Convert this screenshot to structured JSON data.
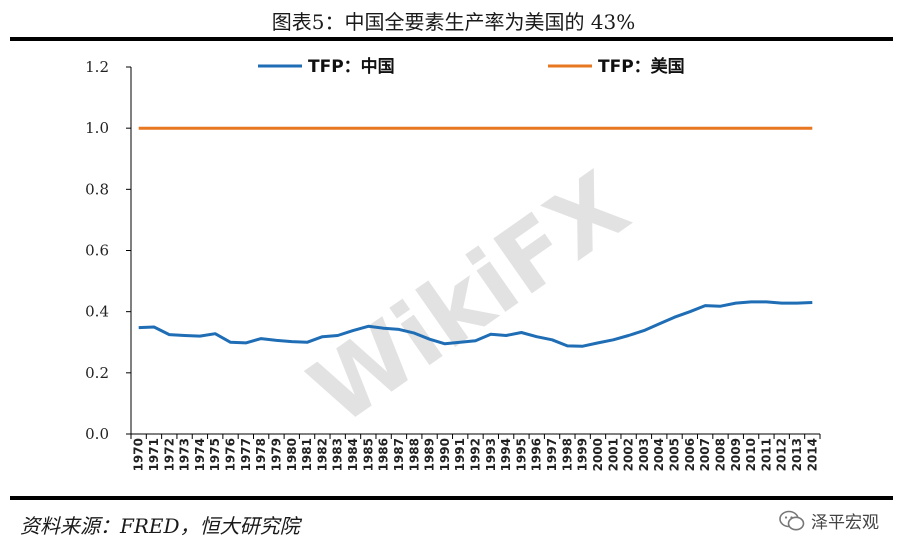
{
  "header": {
    "title": "图表5：中国全要素生产率为美国的 43%"
  },
  "footer": {
    "source": "资料来源：FRED，恒大研究院",
    "brand": "泽平宏观"
  },
  "watermark": {
    "text": "WikiFX"
  },
  "colors": {
    "china": "#1f6db5",
    "usa": "#e87722",
    "axis": "#000000"
  },
  "chart_data": {
    "type": "line",
    "title": "图表5：中国全要素生产率为美国的 43%",
    "xlabel": "",
    "ylabel": "",
    "ylim": [
      0,
      1.2
    ],
    "yticks": [
      "0.0",
      "0.2",
      "0.4",
      "0.6",
      "0.8",
      "1.0",
      "1.2"
    ],
    "grid": false,
    "legend_position": "top",
    "x": [
      "1970",
      "1971",
      "1972",
      "1973",
      "1974",
      "1975",
      "1976",
      "1977",
      "1978",
      "1979",
      "1980",
      "1981",
      "1982",
      "1983",
      "1984",
      "1985",
      "1986",
      "1987",
      "1988",
      "1989",
      "1990",
      "1991",
      "1992",
      "1993",
      "1994",
      "1995",
      "1996",
      "1997",
      "1998",
      "1999",
      "2000",
      "2001",
      "2002",
      "2003",
      "2004",
      "2005",
      "2006",
      "2007",
      "2008",
      "2009",
      "2010",
      "2011",
      "2012",
      "2013",
      "2014"
    ],
    "series": [
      {
        "name": "TFP：中国",
        "color": "#1f6db5",
        "values": [
          0.348,
          0.35,
          0.325,
          0.322,
          0.32,
          0.328,
          0.3,
          0.298,
          0.312,
          0.306,
          0.302,
          0.3,
          0.318,
          0.322,
          0.338,
          0.352,
          0.346,
          0.342,
          0.33,
          0.31,
          0.295,
          0.3,
          0.305,
          0.326,
          0.322,
          0.332,
          0.318,
          0.308,
          0.288,
          0.287,
          0.298,
          0.308,
          0.322,
          0.338,
          0.36,
          0.382,
          0.4,
          0.42,
          0.418,
          0.428,
          0.432,
          0.432,
          0.428,
          0.428,
          0.43
        ]
      },
      {
        "name": "TFP：美国",
        "color": "#e87722",
        "values": [
          1,
          1,
          1,
          1,
          1,
          1,
          1,
          1,
          1,
          1,
          1,
          1,
          1,
          1,
          1,
          1,
          1,
          1,
          1,
          1,
          1,
          1,
          1,
          1,
          1,
          1,
          1,
          1,
          1,
          1,
          1,
          1,
          1,
          1,
          1,
          1,
          1,
          1,
          1,
          1,
          1,
          1,
          1,
          1,
          1
        ]
      }
    ]
  }
}
